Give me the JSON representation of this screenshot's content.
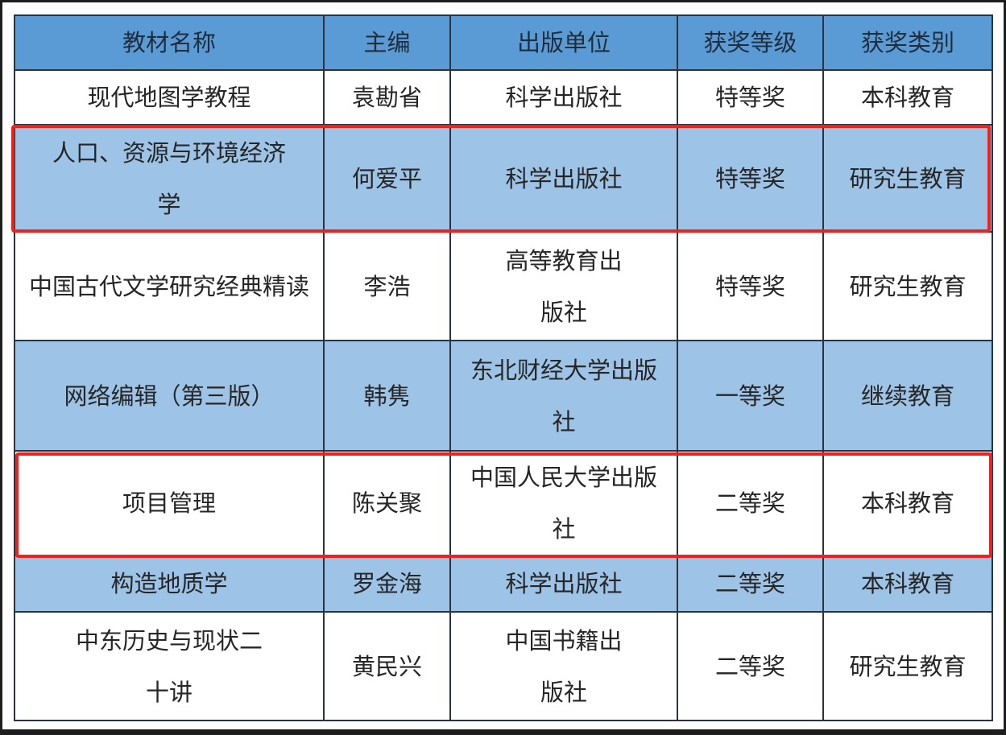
{
  "table": {
    "headers": [
      "教材名称",
      "主编",
      "出版单位",
      "获奖等级",
      "获奖类别"
    ],
    "rows": [
      {
        "name": "现代地图学教程",
        "editor": "袁勘省",
        "publisher": "科学出版社",
        "level": "特等奖",
        "category": "本科教育"
      },
      {
        "name": "人口、资源与环境经济学",
        "editor": "何爱平",
        "publisher": "科学出版社",
        "level": "特等奖",
        "category": "研究生教育"
      },
      {
        "name": "中国古代文学研究经典精读",
        "editor": "李浩",
        "publisher": "高等教育出版社",
        "level": "特等奖",
        "category": "研究生教育"
      },
      {
        "name": "网络编辑（第三版）",
        "editor": "韩隽",
        "publisher": "东北财经大学出版社",
        "level": "一等奖",
        "category": "继续教育"
      },
      {
        "name": "项目管理",
        "editor": "陈关聚",
        "publisher": "中国人民大学出版社",
        "level": "二等奖",
        "category": "本科教育"
      },
      {
        "name": "构造地质学",
        "editor": "罗金海",
        "publisher": "科学出版社",
        "level": "二等奖",
        "category": "本科教育"
      },
      {
        "name": "中东历史与现状二十讲",
        "editor": "黄民兴",
        "publisher": "中国书籍出版社",
        "level": "二等奖",
        "category": "研究生教育"
      }
    ],
    "highlighted_rows": [
      2,
      5
    ]
  },
  "colors": {
    "header": "#5b9bd5",
    "band": "#9dc3e6",
    "highlight": "#f0201a"
  }
}
